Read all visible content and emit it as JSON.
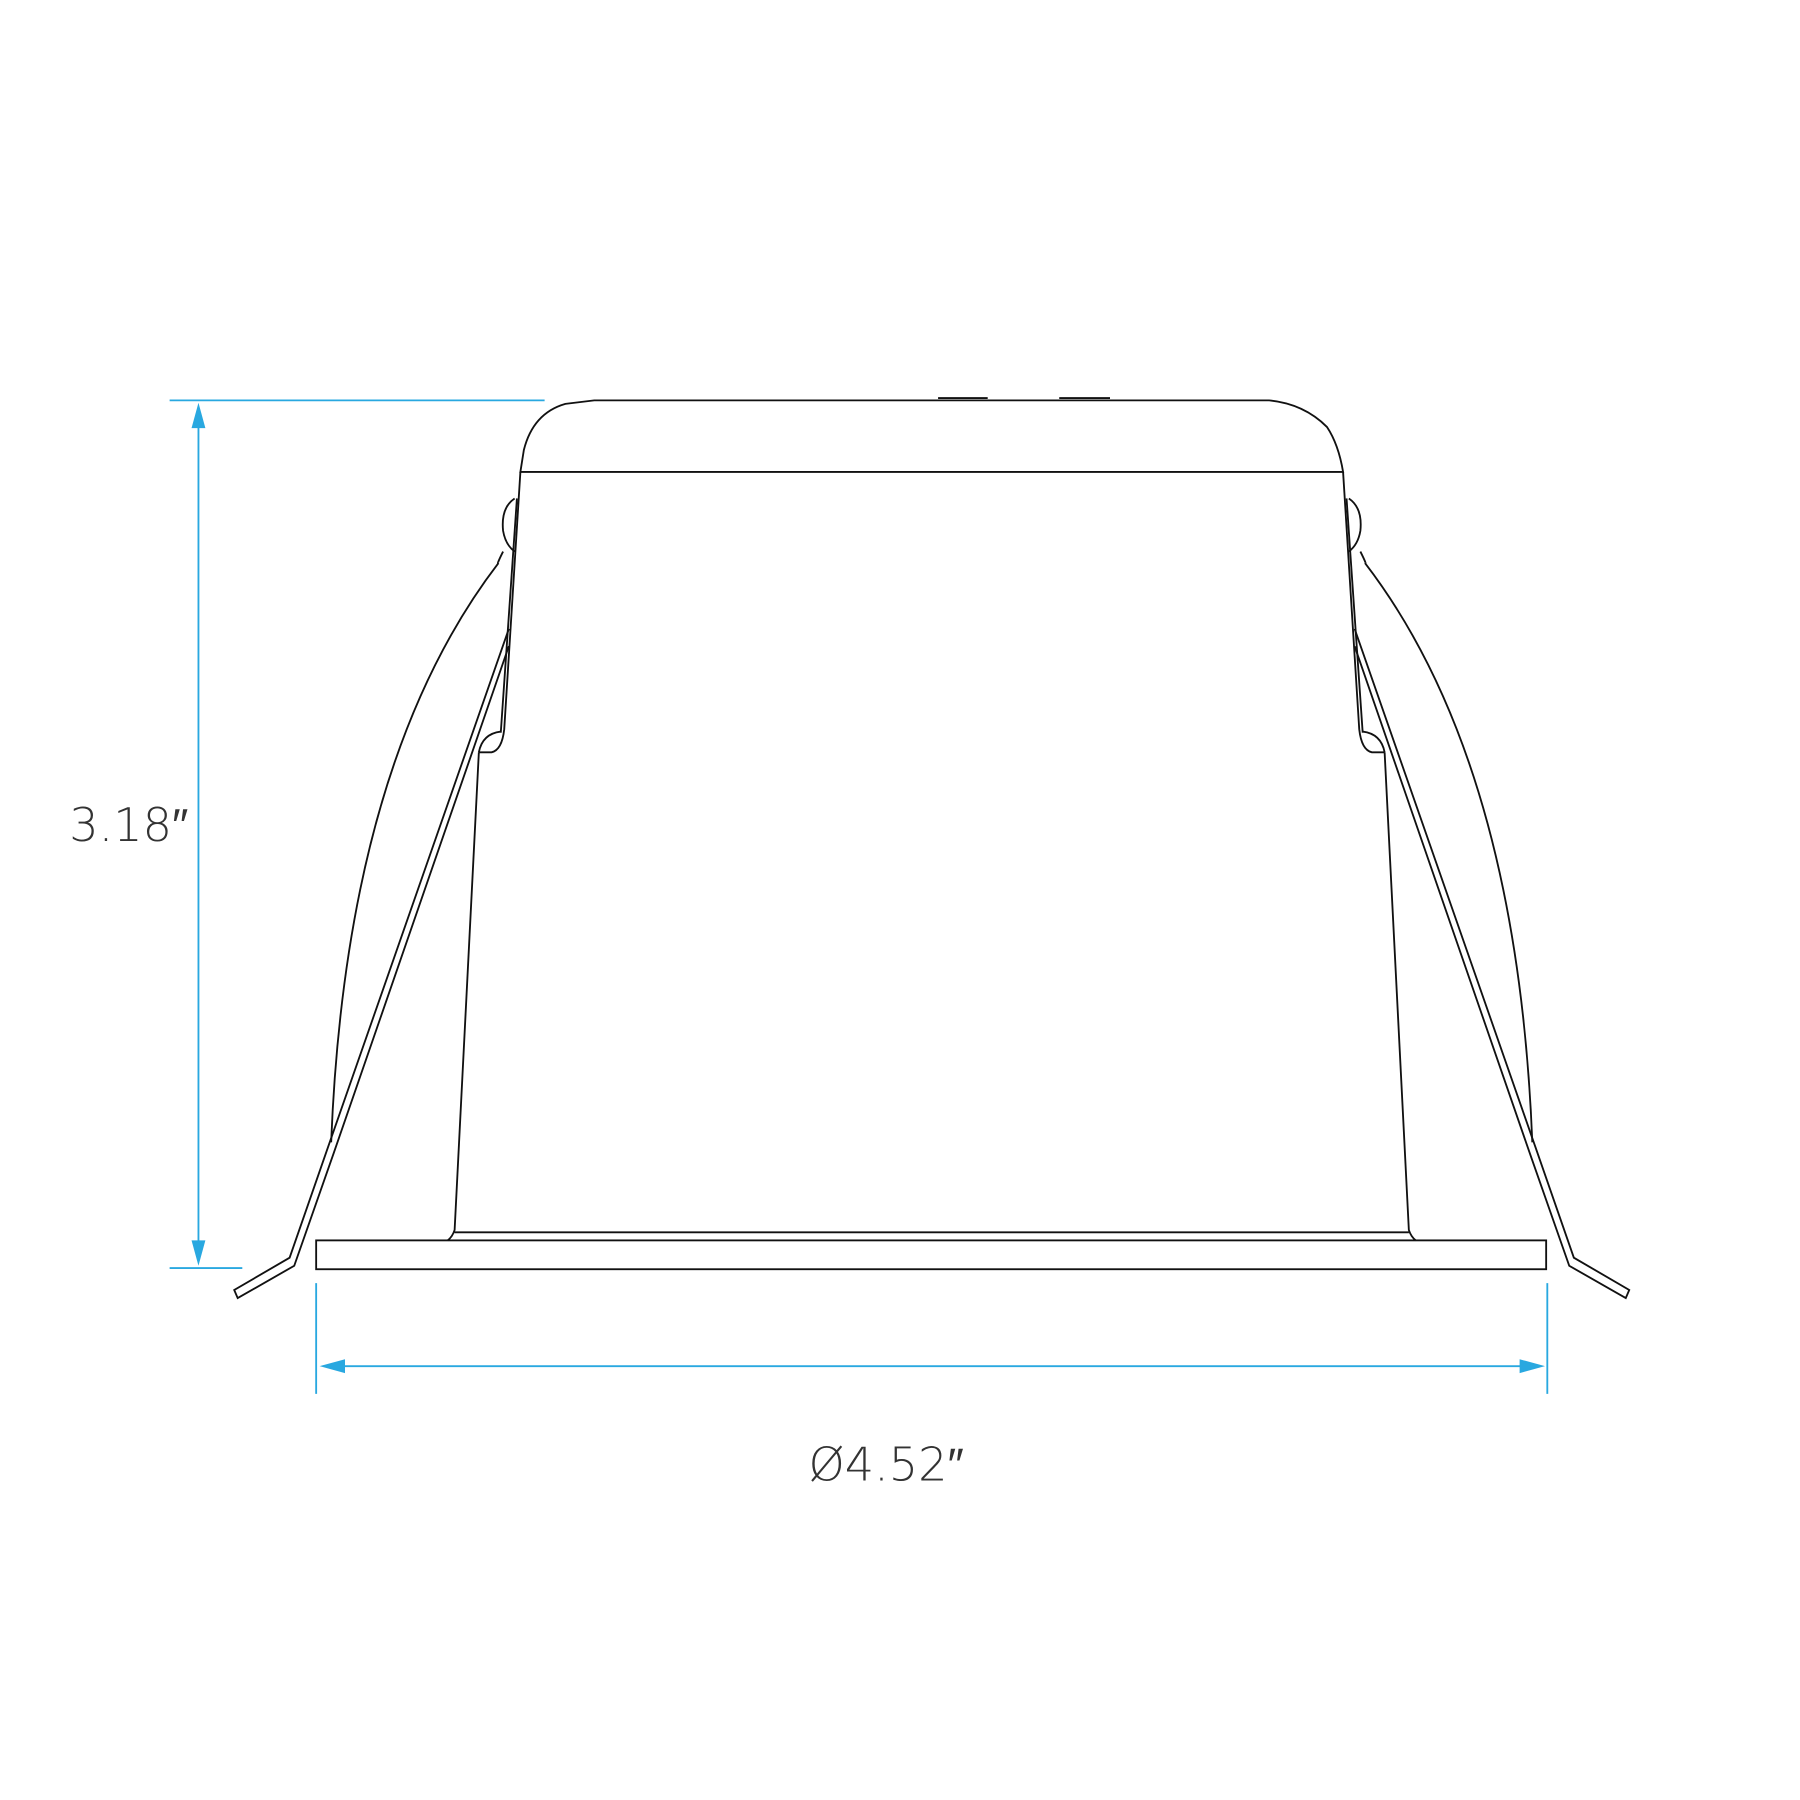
{
  "dimensions": {
    "height": "3.18″",
    "diameter": "Ø4.52″"
  },
  "colors": {
    "dimension_line": "#29a8e0",
    "outline": "#111111",
    "label": "#333333"
  }
}
